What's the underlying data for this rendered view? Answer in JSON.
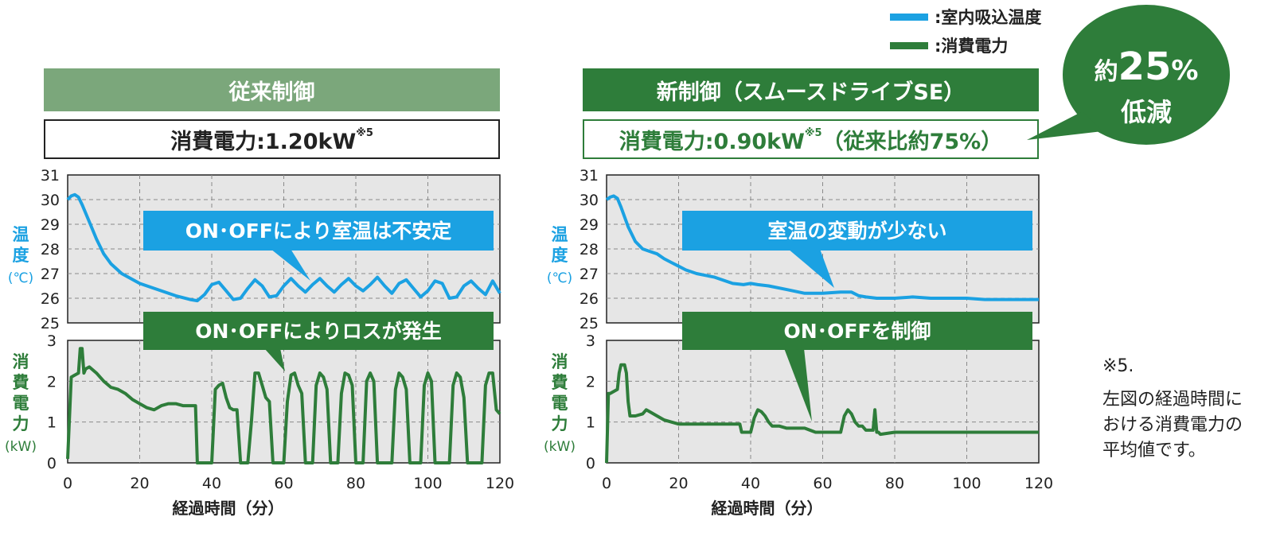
{
  "colors": {
    "temp": "#1ba1e2",
    "power": "#2e7d3a",
    "old_header": "#7ba77b",
    "new_header": "#2e7d3a",
    "callout_blue": "#1ba1e2",
    "callout_green": "#2e7d3a",
    "plot_bg": "#e6e6e6"
  },
  "legend": {
    "items": [
      {
        "label": ":室内吸込温度",
        "color": "#1ba1e2"
      },
      {
        "label": ":消費電力",
        "color": "#2e7d3a"
      }
    ]
  },
  "panels": {
    "left": {
      "header": "従来制御",
      "power_label": "消費電力:1.20kW",
      "power_sup": "※5",
      "power_suffix": "",
      "callout_temp": "ON･OFFにより室温は不安定",
      "callout_power": "ON･OFFによりロスが発生"
    },
    "right": {
      "header": "新制御（スムースドライブSE）",
      "power_label": "消費電力:0.90kW",
      "power_sup": "※5",
      "power_suffix": "（従来比約75%）",
      "callout_temp": "室温の変動が少ない",
      "callout_power": "ON･OFFを制御"
    }
  },
  "bubble": {
    "prefix": "約",
    "value": "25",
    "unit": "%",
    "line2": "低減"
  },
  "note": {
    "mark": "※5.",
    "lines": [
      "左図の経過時間に",
      "おける消費電力の",
      "平均値です。"
    ]
  },
  "axes": {
    "temp_label_chars": [
      "温",
      "度"
    ],
    "temp_unit": "(℃)",
    "power_label_chars": [
      "消",
      "費",
      "電",
      "力"
    ],
    "power_unit": "(kW)",
    "xlabel": "経過時間（分）",
    "temp_ticks": [
      "31",
      "30",
      "29",
      "28",
      "27",
      "26",
      "25"
    ],
    "power_ticks": [
      "3",
      "2",
      "1",
      "0"
    ],
    "x_ticks": [
      "0",
      "20",
      "40",
      "60",
      "80",
      "100",
      "120"
    ]
  },
  "chart_data": [
    {
      "type": "line",
      "title": "従来制御",
      "xlabel": "経過時間（分）",
      "xlim": [
        0,
        120
      ],
      "subplots": [
        {
          "ylabel": "温度(℃)",
          "ylim": [
            25,
            31
          ],
          "series": [
            {
              "name": ":室内吸込温度",
              "color": "#1ba1e2",
              "x": [
                0,
                1,
                2,
                3,
                4,
                6,
                8,
                10,
                12,
                15,
                20,
                25,
                30,
                34,
                36,
                38,
                40,
                42,
                44,
                46,
                48,
                50,
                52,
                54,
                56,
                58,
                60,
                62,
                64,
                66,
                68,
                70,
                72,
                74,
                76,
                78,
                80,
                82,
                84,
                86,
                88,
                90,
                92,
                94,
                96,
                98,
                100,
                102,
                104,
                106,
                108,
                110,
                112,
                114,
                116,
                118,
                120
              ],
              "y": [
                30.0,
                30.15,
                30.2,
                30.1,
                29.8,
                29.1,
                28.4,
                27.8,
                27.4,
                27.0,
                26.6,
                26.35,
                26.1,
                25.95,
                25.9,
                26.15,
                26.55,
                26.65,
                26.3,
                25.95,
                26.0,
                26.4,
                26.75,
                26.5,
                26.05,
                26.1,
                26.5,
                26.8,
                26.5,
                26.25,
                26.55,
                26.8,
                26.5,
                26.25,
                26.55,
                26.8,
                26.5,
                26.3,
                26.55,
                26.85,
                26.5,
                26.2,
                26.6,
                26.75,
                26.4,
                26.05,
                26.3,
                26.7,
                26.6,
                26.0,
                26.05,
                26.5,
                26.7,
                26.4,
                26.15,
                26.7,
                26.2
              ]
            }
          ]
        },
        {
          "ylabel": "消費電力(kW)",
          "ylim": [
            0,
            3
          ],
          "series": [
            {
              "name": ":消費電力",
              "color": "#2e7d3a",
              "x": [
                0,
                1,
                2,
                3,
                3.5,
                4,
                4.5,
                5,
                6,
                8,
                10,
                12,
                14,
                16,
                18,
                20,
                22,
                24,
                26,
                28,
                30,
                32,
                35,
                35.5,
                36,
                39,
                40,
                41,
                42,
                43,
                44,
                45,
                46,
                47,
                48,
                49,
                50,
                51,
                52,
                53,
                54,
                55,
                56,
                57,
                58,
                59,
                60,
                61,
                62,
                63,
                64,
                65,
                66,
                67,
                68,
                69,
                70,
                71,
                72,
                73,
                74,
                75,
                76,
                77,
                78,
                79,
                80,
                81,
                82,
                83,
                84,
                85,
                86,
                87,
                88,
                89,
                90,
                91,
                92,
                93,
                94,
                95,
                96,
                97,
                98,
                99,
                100,
                101,
                102,
                103,
                104,
                105,
                106,
                107,
                108,
                109,
                110,
                111,
                112,
                113,
                114,
                115,
                116,
                117,
                118,
                119,
                120
              ],
              "y": [
                0.1,
                2.1,
                2.15,
                2.2,
                2.8,
                2.8,
                2.2,
                2.3,
                2.35,
                2.2,
                2.0,
                1.85,
                1.8,
                1.7,
                1.55,
                1.45,
                1.35,
                1.3,
                1.4,
                1.45,
                1.45,
                1.4,
                1.4,
                1.4,
                0.0,
                0.0,
                0.0,
                1.8,
                1.9,
                1.95,
                1.6,
                1.35,
                1.3,
                1.3,
                0.0,
                0.0,
                0.0,
                1.0,
                2.2,
                2.2,
                1.9,
                1.6,
                1.5,
                0.0,
                0.0,
                0.0,
                0.0,
                1.5,
                2.15,
                2.2,
                1.9,
                1.7,
                0.0,
                0.0,
                0.0,
                1.9,
                2.2,
                2.1,
                1.8,
                0.0,
                0.0,
                0.0,
                1.7,
                2.2,
                2.15,
                1.9,
                0.0,
                0.0,
                0.0,
                2.0,
                2.2,
                2.0,
                0.0,
                0.0,
                0.0,
                0.0,
                0.0,
                1.8,
                2.2,
                2.1,
                1.8,
                0.0,
                0.0,
                0.0,
                0.0,
                1.9,
                2.2,
                2.0,
                0.0,
                0.0,
                0.0,
                0.0,
                0.0,
                1.9,
                2.2,
                2.1,
                1.6,
                0.0,
                0.0,
                0.0,
                0.0,
                0.0,
                1.9,
                2.2,
                2.2,
                1.3,
                1.2
              ]
            }
          ]
        }
      ],
      "annotations": [
        "ON･OFFにより室温は不安定",
        "ON･OFFによりロスが発生"
      ]
    },
    {
      "type": "line",
      "title": "新制御（スムースドライブSE）",
      "xlabel": "経過時間（分）",
      "xlim": [
        0,
        120
      ],
      "subplots": [
        {
          "ylabel": "温度(℃)",
          "ylim": [
            25,
            31
          ],
          "series": [
            {
              "name": ":室内吸込温度",
              "color": "#1ba1e2",
              "x": [
                0,
                1,
                2,
                3,
                4,
                6,
                8,
                10,
                12,
                14,
                16,
                18,
                20,
                22,
                25,
                30,
                35,
                38,
                40,
                42,
                45,
                50,
                55,
                60,
                65,
                68,
                70,
                72,
                75,
                80,
                85,
                90,
                95,
                100,
                105,
                110,
                115,
                120
              ],
              "y": [
                30.0,
                30.1,
                30.15,
                30.05,
                29.7,
                28.9,
                28.3,
                28.0,
                27.9,
                27.8,
                27.6,
                27.45,
                27.3,
                27.15,
                27.0,
                26.85,
                26.6,
                26.55,
                26.6,
                26.55,
                26.5,
                26.35,
                26.2,
                26.2,
                26.25,
                26.25,
                26.1,
                26.05,
                26.0,
                26.0,
                26.05,
                26.0,
                26.0,
                26.0,
                25.95,
                25.95,
                25.95,
                25.95
              ]
            }
          ]
        },
        {
          "ylabel": "消費電力(kW)",
          "ylim": [
            0,
            3
          ],
          "series": [
            {
              "name": ":消費電力",
              "color": "#2e7d3a",
              "x": [
                0,
                0.5,
                1,
                3,
                3.5,
                4,
                5,
                5.5,
                6,
                6.5,
                8,
                10,
                11,
                12,
                14,
                16,
                18,
                20,
                25,
                30,
                35,
                37,
                37.5,
                40,
                41,
                42,
                43,
                44,
                45,
                46,
                48,
                50,
                55,
                58,
                60,
                65,
                66,
                67,
                68,
                69,
                70,
                71,
                72,
                74,
                74.5,
                75,
                75.5,
                76,
                80,
                90,
                100,
                110,
                120
              ],
              "y": [
                0.0,
                1.7,
                1.7,
                1.8,
                2.2,
                2.4,
                2.4,
                2.2,
                1.5,
                1.15,
                1.15,
                1.2,
                1.3,
                1.25,
                1.15,
                1.05,
                1.0,
                0.95,
                0.95,
                0.95,
                0.95,
                0.95,
                0.75,
                0.75,
                1.1,
                1.3,
                1.25,
                1.15,
                1.0,
                0.9,
                0.9,
                0.85,
                0.85,
                0.75,
                0.75,
                0.75,
                1.15,
                1.3,
                1.2,
                1.0,
                0.9,
                0.9,
                0.8,
                0.8,
                1.3,
                0.75,
                0.75,
                0.7,
                0.75,
                0.75,
                0.75,
                0.75,
                0.75
              ]
            }
          ]
        }
      ],
      "annotations": [
        "室温の変動が少ない",
        "ON･OFFを制御"
      ]
    }
  ]
}
